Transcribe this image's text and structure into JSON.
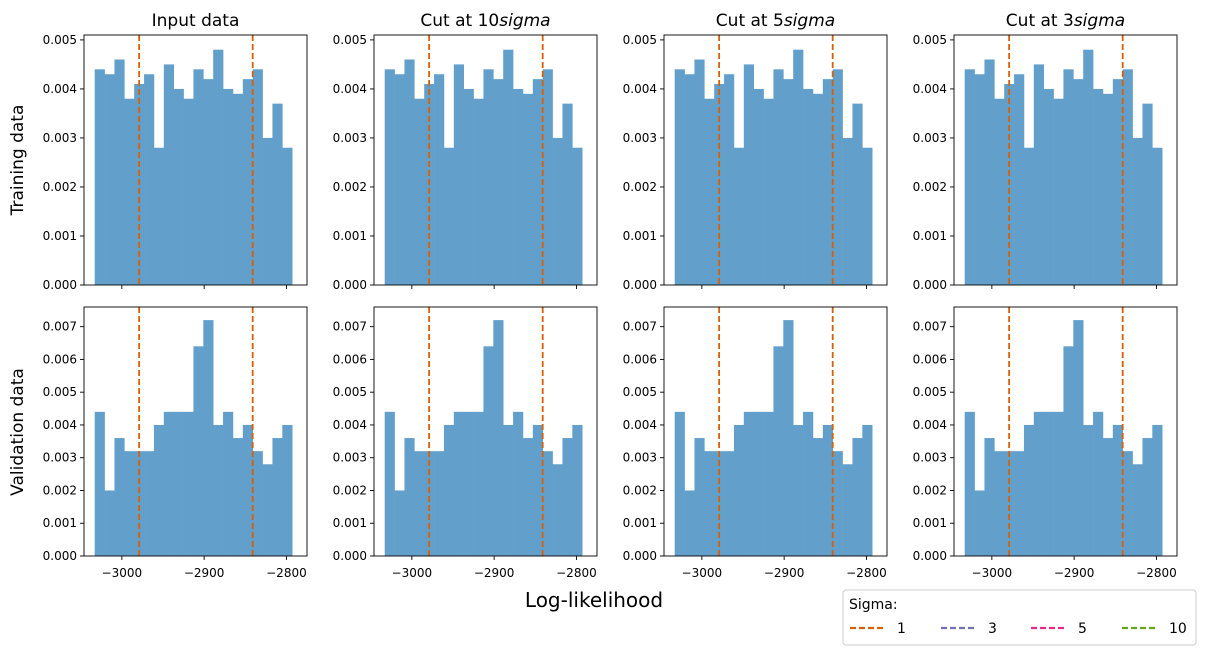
{
  "figure": {
    "xlabel": "Log-likelihood",
    "row_labels": [
      "Training data",
      "Validation data"
    ],
    "col_titles": [
      {
        "prefix": "Input data",
        "italic": ""
      },
      {
        "prefix": "Cut at 10",
        "italic": "sigma"
      },
      {
        "prefix": "Cut at 5",
        "italic": "sigma"
      },
      {
        "prefix": "Cut at 3",
        "italic": "sigma"
      }
    ]
  },
  "legend": {
    "title": "Sigma:",
    "placement": "bottom-right",
    "entries": [
      {
        "label": "1",
        "color": "#d95f02"
      },
      {
        "label": "3",
        "color": "#7570b3"
      },
      {
        "label": "5",
        "color": "#e7298a"
      },
      {
        "label": "10",
        "color": "#66a61e"
      }
    ]
  },
  "colors": {
    "bar": "#62a0cb",
    "cut_line": "#d95f02"
  },
  "chart_data": {
    "type": "bar",
    "bin_edges": [
      -3033,
      -3021,
      -3009,
      -2997,
      -2985,
      -2973,
      -2961,
      -2949,
      -2937,
      -2925,
      -2913,
      -2901,
      -2889,
      -2877,
      -2865,
      -2853,
      -2841,
      -2829,
      -2817,
      -2805,
      -2793,
      -2781
    ],
    "cut_lines_x": [
      -2979,
      -2841
    ],
    "xticks": [
      -3000,
      -2900,
      -2800
    ],
    "xlim": [
      -3046,
      -2775
    ],
    "panels": {
      "training": {
        "ylim": [
          0,
          0.0051
        ],
        "yticks": [
          0.0,
          0.001,
          0.002,
          0.003,
          0.004,
          0.005
        ],
        "values": [
          0.0044,
          0.0043,
          0.0046,
          0.0038,
          0.0041,
          0.0043,
          0.0028,
          0.0045,
          0.004,
          0.0038,
          0.0044,
          0.0042,
          0.0048,
          0.004,
          0.0039,
          0.0042,
          0.0044,
          0.003,
          0.0037,
          0.0028,
          null
        ]
      },
      "validation": {
        "ylim": [
          0,
          0.0076
        ],
        "yticks": [
          0.0,
          0.001,
          0.002,
          0.003,
          0.004,
          0.005,
          0.006,
          0.007
        ],
        "values": [
          0.0044,
          0.002,
          0.0036,
          0.0032,
          0.0032,
          0.0032,
          0.004,
          0.0044,
          0.0044,
          0.0044,
          0.0064,
          0.0072,
          0.004,
          0.0044,
          0.0036,
          0.004,
          0.0032,
          0.0028,
          0.0036,
          0.004,
          null
        ]
      }
    }
  }
}
